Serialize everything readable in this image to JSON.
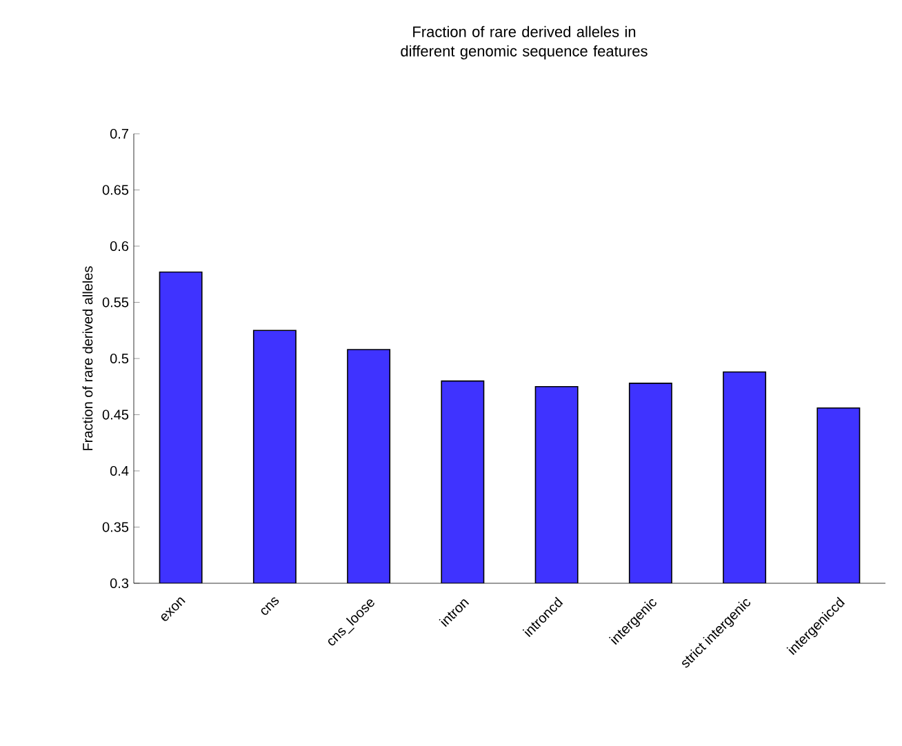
{
  "chart_data": {
    "type": "bar",
    "title": "Fraction of rare derived alleles in different genomic sequence features",
    "ylabel": "Fraction of rare derived alleles",
    "categories": [
      "exon",
      "cns",
      "cns_loose",
      "intron",
      "introncd",
      "intergenic",
      "strict intergenic",
      "intergeniccd"
    ],
    "values": [
      0.577,
      0.525,
      0.508,
      0.48,
      0.475,
      0.478,
      0.488,
      0.456
    ],
    "color": "#3f33ff",
    "ylim": [
      0.3,
      0.7
    ],
    "yticks": [
      0.3,
      0.35,
      0.4,
      0.45,
      0.5,
      0.55,
      0.6,
      0.65,
      0.7
    ],
    "grid": false
  }
}
